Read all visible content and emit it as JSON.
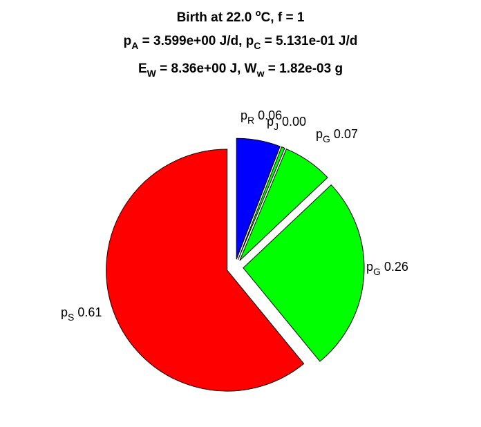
{
  "title": {
    "line1": {
      "pre": "Birth at 22.0 ",
      "sup": "o",
      "post": "C, f = 1"
    },
    "line2": {
      "a": "p",
      "a_sub": "A",
      "b": " = 3.599e+00 J/d, p",
      "b_sub": "C",
      "c": " = 5.131e-01 J/d"
    },
    "line3": {
      "a": "E",
      "a_sub": "W",
      "b": " = 8.36e+00 J, W",
      "b_sub": "w",
      "c": " = 1.82e-03 g"
    }
  },
  "chart_data": {
    "type": "pie",
    "start": "top",
    "direction": "clockwise",
    "exploded": true,
    "slices": [
      {
        "symbol": "p",
        "sub": "R",
        "value": 0.0587,
        "label_value": "0.06",
        "color": "#0000ff"
      },
      {
        "symbol": "p",
        "sub": "J",
        "value": 0.0044,
        "label_value": "0.00",
        "color": "#00ff00"
      },
      {
        "symbol": "p",
        "sub": "G",
        "value": 0.0664,
        "label_value": "0.07",
        "color": "#00ff00"
      },
      {
        "symbol": "p",
        "sub": "G",
        "value": 0.2612,
        "label_value": "0.26",
        "color": "#00ff00"
      },
      {
        "symbol": "p",
        "sub": "S",
        "value": 0.6093,
        "label_value": "0.61",
        "color": "#ff0000"
      }
    ]
  }
}
